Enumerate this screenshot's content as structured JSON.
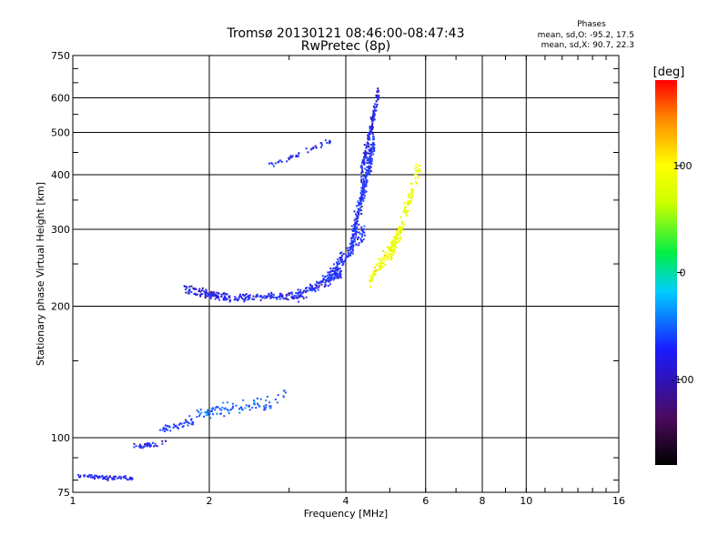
{
  "header": {
    "title_line1": "Tromsø 20130121 08:46:00-08:47:43",
    "title_line2": "RwPretec (8p)",
    "stats_title": "Phases",
    "stats_o": "mean, sd,O: -95.2, 17.5",
    "stats_x": "mean, sd,X:  90.7, 22.3"
  },
  "chart_data": {
    "type": "scatter",
    "title": "Tromsø 20130121 08:46:00-08:47:43",
    "subtitle": "RwPretec (8p)",
    "xlabel": "Frequency [MHz]",
    "ylabel": "Stationary phase Virtual Height [km]",
    "x_scale": "log",
    "y_scale": "log",
    "xlim": [
      1,
      16
    ],
    "ylim": [
      75,
      750
    ],
    "x_ticks": [
      1,
      2,
      4,
      6,
      8,
      10,
      16
    ],
    "y_ticks": [
      75,
      100,
      200,
      300,
      400,
      500,
      600,
      750
    ],
    "grid": true,
    "colorbar": {
      "label": "[deg]",
      "range": [
        -180,
        180
      ],
      "ticks": [
        100,
        0,
        -100
      ],
      "colors": [
        "#000000",
        "#4a0a5a",
        "#1a1aff",
        "#00ccff",
        "#00ee44",
        "#ccff00",
        "#ffff00",
        "#ff8800",
        "#ff0000"
      ]
    },
    "series": [
      {
        "segments": [
          {
            "x0": 1.02,
            "x1": 1.35,
            "y0": 82,
            "y1": 81,
            "n": 70,
            "phase": -110,
            "spread": 0.018
          },
          {
            "x0": 1.36,
            "x1": 1.6,
            "y0": 96,
            "y1": 98,
            "n": 40,
            "phase": -105,
            "spread": 0.02
          },
          {
            "x0": 1.55,
            "x1": 1.85,
            "y0": 104,
            "y1": 110,
            "n": 45,
            "phase": -95,
            "spread": 0.03
          },
          {
            "x0": 1.8,
            "x1": 2.6,
            "y0": 113,
            "y1": 120,
            "n": 80,
            "phase": -70,
            "spread": 0.05
          },
          {
            "x0": 2.6,
            "x1": 2.95,
            "y0": 118,
            "y1": 128,
            "n": 20,
            "phase": -70,
            "spread": 0.06
          },
          {
            "x0": 1.75,
            "x1": 2.2,
            "y0": 220,
            "y1": 210,
            "n": 110,
            "phase": -110,
            "spread": 0.035
          },
          {
            "x0": 2.2,
            "x1": 3.1,
            "y0": 210,
            "y1": 212,
            "n": 110,
            "phase": -105,
            "spread": 0.03
          },
          {
            "x0": 3.1,
            "x1": 3.9,
            "y0": 212,
            "y1": 240,
            "n": 130,
            "phase": -105,
            "spread": 0.04
          },
          {
            "x0": 3.6,
            "x1": 4.4,
            "y0": 230,
            "y1": 300,
            "n": 140,
            "phase": -100,
            "spread": 0.06
          },
          {
            "x0": 4.1,
            "x1": 4.6,
            "y0": 280,
            "y1": 480,
            "n": 260,
            "phase": -100,
            "spread": 0.1
          },
          {
            "x0": 4.3,
            "x1": 4.7,
            "y0": 400,
            "y1": 620,
            "n": 140,
            "phase": -110,
            "spread": 0.06
          },
          {
            "x0": 4.5,
            "x1": 5.3,
            "y0": 230,
            "y1": 300,
            "n": 110,
            "phase": 90,
            "spread": 0.05
          },
          {
            "x0": 5.0,
            "x1": 5.8,
            "y0": 260,
            "y1": 420,
            "n": 120,
            "phase": 80,
            "spread": 0.08
          },
          {
            "x0": 2.7,
            "x1": 3.7,
            "y0": 420,
            "y1": 480,
            "n": 45,
            "phase": -105,
            "spread": 0.02
          }
        ]
      }
    ]
  }
}
